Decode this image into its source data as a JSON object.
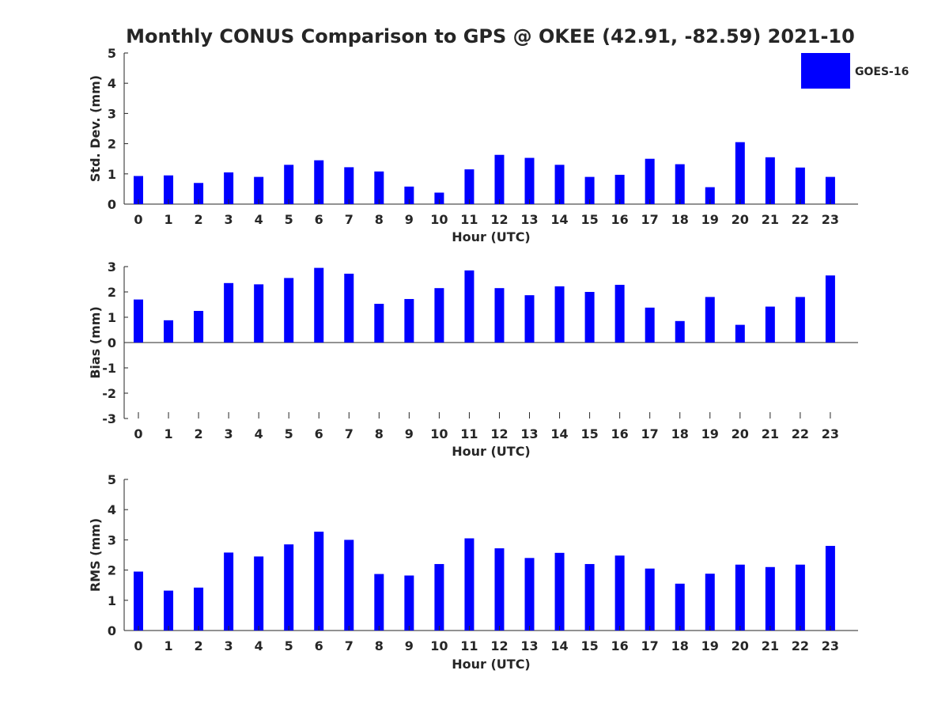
{
  "title": "Monthly CONUS Comparison to GPS @ OKEE (42.91, -82.59) 2021-10",
  "legend": {
    "label": "GOES-16",
    "color": "#0000ff"
  },
  "chart_data": [
    {
      "type": "bar",
      "panel": "std",
      "xlabel": "Hour (UTC)",
      "ylabel": "Std. Dev. (mm)",
      "ylim": [
        0,
        5
      ],
      "yticks": [
        "0",
        "1",
        "2",
        "3",
        "4",
        "5"
      ],
      "categories": [
        "0",
        "1",
        "2",
        "3",
        "4",
        "5",
        "6",
        "7",
        "8",
        "9",
        "10",
        "11",
        "12",
        "13",
        "14",
        "15",
        "16",
        "17",
        "18",
        "19",
        "20",
        "21",
        "22",
        "23"
      ],
      "series": [
        {
          "name": "GOES-16",
          "color": "#0000ff",
          "values": [
            0.93,
            0.95,
            0.7,
            1.05,
            0.9,
            1.3,
            1.45,
            1.22,
            1.08,
            0.58,
            0.38,
            1.15,
            1.63,
            1.53,
            1.3,
            0.9,
            0.97,
            1.5,
            1.32,
            0.56,
            2.05,
            1.55,
            1.21,
            0.9
          ]
        }
      ]
    },
    {
      "type": "bar",
      "panel": "bias",
      "xlabel": "Hour (UTC)",
      "ylabel": "Bias (mm)",
      "ylim": [
        -3,
        3
      ],
      "yticks": [
        "-3",
        "-2",
        "-1",
        "0",
        "1",
        "2",
        "3"
      ],
      "categories": [
        "0",
        "1",
        "2",
        "3",
        "4",
        "5",
        "6",
        "7",
        "8",
        "9",
        "10",
        "11",
        "12",
        "13",
        "14",
        "15",
        "16",
        "17",
        "18",
        "19",
        "20",
        "21",
        "22",
        "23"
      ],
      "series": [
        {
          "name": "GOES-16",
          "color": "#0000ff",
          "values": [
            1.7,
            0.88,
            1.25,
            2.35,
            2.3,
            2.55,
            2.95,
            2.72,
            1.53,
            1.72,
            2.15,
            2.85,
            2.15,
            1.87,
            2.22,
            2.0,
            2.28,
            1.38,
            0.85,
            1.8,
            0.7,
            1.42,
            1.8,
            2.65
          ]
        }
      ]
    },
    {
      "type": "bar",
      "panel": "rms",
      "xlabel": "Hour (UTC)",
      "ylabel": "RMS (mm)",
      "ylim": [
        0,
        5
      ],
      "yticks": [
        "0",
        "1",
        "2",
        "3",
        "4",
        "5"
      ],
      "categories": [
        "0",
        "1",
        "2",
        "3",
        "4",
        "5",
        "6",
        "7",
        "8",
        "9",
        "10",
        "11",
        "12",
        "13",
        "14",
        "15",
        "16",
        "17",
        "18",
        "19",
        "20",
        "21",
        "22",
        "23"
      ],
      "series": [
        {
          "name": "GOES-16",
          "color": "#0000ff",
          "values": [
            1.95,
            1.32,
            1.42,
            2.58,
            2.45,
            2.85,
            3.27,
            3.0,
            1.87,
            1.82,
            2.2,
            3.05,
            2.72,
            2.4,
            2.57,
            2.2,
            2.48,
            2.05,
            1.55,
            1.88,
            2.18,
            2.1,
            2.18,
            2.8
          ]
        }
      ]
    }
  ]
}
